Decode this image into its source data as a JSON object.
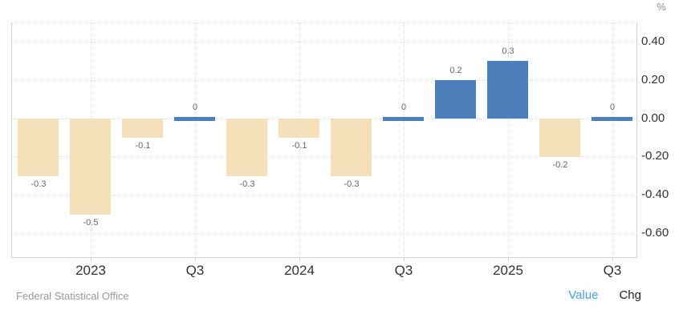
{
  "chart": {
    "unit_label": "%",
    "source": "Federal Statistical Office",
    "toggle": {
      "value_label": "Value",
      "chg_label": "Chg",
      "active": "Value"
    },
    "colors": {
      "positive_bar": "#4d7fbb",
      "negative_bar": "#f5e0ba",
      "grid": "#dcdcdc",
      "border": "#d3d3d3",
      "tick": "#cccccc",
      "value_label": "#666666",
      "axis_label": "#333333",
      "muted": "#9a9a9a",
      "toggle_active": "#45a1ea",
      "toggle_inactive": "#222222"
    }
  },
  "chart_data": {
    "type": "bar",
    "title": "",
    "xlabel": "",
    "ylabel": "%",
    "values": [
      -0.3,
      -0.5,
      -0.1,
      0,
      -0.3,
      -0.1,
      -0.3,
      0,
      0.2,
      0.3,
      -0.2,
      0
    ],
    "bar_labels": [
      "-0.3",
      "-0.5",
      "-0.1",
      "0",
      "-0.3",
      "-0.1",
      "-0.3",
      "0",
      "0.2",
      "0.3",
      "-0.2",
      "0"
    ],
    "x_tick_labels": [
      "",
      "2023",
      "",
      "Q3",
      "",
      "2024",
      "",
      "Q3",
      "",
      "2025",
      "",
      "Q3"
    ],
    "y_ticks": [
      0.4,
      0.2,
      0,
      -0.2,
      -0.4,
      -0.6
    ],
    "y_tick_labels": [
      "0.40",
      "0.20",
      "0.00",
      "-0.20",
      "-0.40",
      "-0.60"
    ],
    "ylim": [
      -0.73,
      0.5
    ],
    "grid": "dotted",
    "legend": "none",
    "color_rule": "values >= 0 use positive_bar (blue), values < 0 use negative_bar (tan)"
  }
}
